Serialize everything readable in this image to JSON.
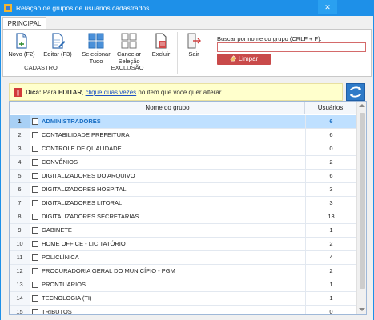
{
  "window": {
    "title": "Relação de grupos de usuários cadastrados",
    "close_glyph": "✕"
  },
  "ribbon": {
    "tab_label": "PRINCIPAL",
    "buttons": {
      "new": "Novo (F2)",
      "edit": "Editar (F3)",
      "select_all_1": "Selecionar",
      "select_all_2": "Tudo",
      "cancel_sel_1": "Cancelar",
      "cancel_sel_2": "Seleção",
      "delete": "Excluir",
      "exit": "Sair"
    },
    "groups": {
      "cadastro": "CADASTRO",
      "exclusao": "EXCLUSÃO"
    }
  },
  "search": {
    "label": "Buscar por nome do grupo (CRLF + F):",
    "value": "",
    "clear_label": "Limpar"
  },
  "tip": {
    "prefix": "Dica:",
    "text1": "Para",
    "bold_word": "EDITAR",
    "link": "clique duas vezes",
    "text2": "no item que você quer alterar."
  },
  "table": {
    "columns": [
      "Nome do grupo",
      "Usuários"
    ],
    "selected_row": 0,
    "rows": [
      {
        "n": "1",
        "name": "ADMINISTRADORES",
        "count": "6"
      },
      {
        "n": "2",
        "name": "CONTABILIDADE PREFEITURA",
        "count": "6"
      },
      {
        "n": "3",
        "name": "CONTROLE DE QUALIDADE",
        "count": "0"
      },
      {
        "n": "4",
        "name": "CONVÊNIOS",
        "count": "2"
      },
      {
        "n": "5",
        "name": "DIGITALIZADORES DO ARQUIVO",
        "count": "6"
      },
      {
        "n": "6",
        "name": "DIGITALIZADORES HOSPITAL",
        "count": "3"
      },
      {
        "n": "7",
        "name": "DIGITALIZADORES LITORAL",
        "count": "3"
      },
      {
        "n": "8",
        "name": "DIGITALIZADORES SECRETARIAS",
        "count": "13"
      },
      {
        "n": "9",
        "name": "GABINETE",
        "count": "1"
      },
      {
        "n": "10",
        "name": "HOME OFFICE - LICITATÓRIO",
        "count": "2"
      },
      {
        "n": "11",
        "name": "POLICLÍNICA",
        "count": "4"
      },
      {
        "n": "12",
        "name": "PROCURADORIA GERAL DO MUNICÍPIO - PGM",
        "count": "2"
      },
      {
        "n": "13",
        "name": "PRONTUARIOS",
        "count": "1"
      },
      {
        "n": "14",
        "name": "TECNOLOGIA (TI)",
        "count": "1"
      },
      {
        "n": "15",
        "name": "TRIBUTOS",
        "count": "0"
      }
    ]
  },
  "colors": {
    "titlebar": "#1e90e8",
    "selected_row": "#bfe0ff",
    "clear_button": "#c94a4a",
    "tip_background": "#ffffcc"
  }
}
